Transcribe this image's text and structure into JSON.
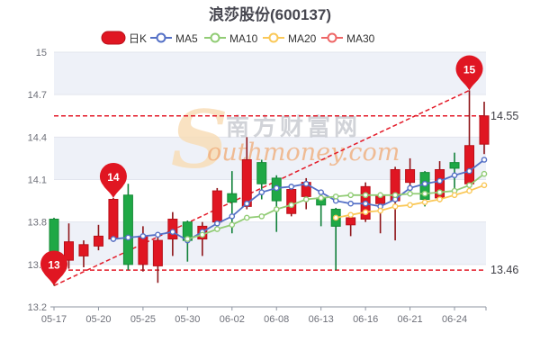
{
  "title": "浪莎股份(600137)",
  "legend": {
    "items": [
      {
        "label": "日K",
        "color": "#e01622",
        "icon": "candlestick-rect"
      },
      {
        "label": "MA5",
        "color": "#5470c6",
        "icon": "line-circle"
      },
      {
        "label": "MA10",
        "color": "#91cc75",
        "icon": "line-circle"
      },
      {
        "label": "MA20",
        "color": "#fac858",
        "icon": "line-circle"
      },
      {
        "label": "MA30",
        "color": "#ee6666",
        "icon": "line-circle"
      }
    ]
  },
  "watermark": {
    "logo_letter": "S",
    "brand_cn": "南方财富网",
    "brand_en": "outhmoney.com"
  },
  "chart_data": {
    "type": "candlestick",
    "title": "浪莎股份(600137)",
    "ylim": [
      13.2,
      15.0
    ],
    "y_ticks": [
      "15",
      "14.7",
      "14.4",
      "14.1",
      "13.8",
      "13.5",
      "13.2"
    ],
    "x_tick_labels": [
      "05-17",
      "05-20",
      "05-25",
      "05-30",
      "06-02",
      "06-08",
      "06-13",
      "06-16",
      "06-21",
      "06-24"
    ],
    "x_tick_step": 3,
    "candles_ohlc_note": "each item is [open, close, low, high]; close>=open renders red (up), else green (down)",
    "candles_ohlc": [
      [
        13.82,
        13.46,
        13.35,
        13.83
      ],
      [
        13.53,
        13.66,
        13.47,
        13.79
      ],
      [
        13.56,
        13.64,
        13.48,
        13.67
      ],
      [
        13.63,
        13.7,
        13.6,
        13.78
      ],
      [
        13.68,
        13.96,
        13.66,
        13.97
      ],
      [
        13.99,
        13.5,
        13.46,
        14.07
      ],
      [
        13.5,
        13.7,
        13.45,
        13.77
      ],
      [
        13.49,
        13.67,
        13.37,
        13.7
      ],
      [
        13.68,
        13.82,
        13.56,
        13.87
      ],
      [
        13.8,
        13.67,
        13.52,
        13.81
      ],
      [
        13.68,
        13.77,
        13.56,
        13.8
      ],
      [
        13.8,
        14.02,
        13.75,
        14.04
      ],
      [
        14.0,
        13.94,
        13.72,
        14.16
      ],
      [
        13.91,
        14.24,
        13.89,
        14.4
      ],
      [
        14.22,
        14.07,
        13.96,
        14.24
      ],
      [
        14.11,
        13.95,
        13.73,
        14.13
      ],
      [
        13.86,
        14.03,
        13.84,
        14.06
      ],
      [
        13.98,
        14.08,
        13.89,
        14.11
      ],
      [
        13.97,
        13.92,
        13.77,
        14.02
      ],
      [
        13.89,
        13.77,
        13.46,
        13.9
      ],
      [
        13.78,
        13.83,
        13.7,
        13.86
      ],
      [
        13.82,
        14.05,
        13.8,
        14.08
      ],
      [
        13.93,
        13.99,
        13.72,
        14.01
      ],
      [
        13.95,
        14.17,
        13.67,
        14.19
      ],
      [
        14.08,
        14.17,
        13.98,
        14.25
      ],
      [
        14.15,
        13.96,
        13.91,
        14.16
      ],
      [
        13.97,
        14.17,
        13.94,
        14.23
      ],
      [
        14.22,
        14.18,
        14.03,
        14.29
      ],
      [
        14.07,
        14.34,
        14.02,
        14.73
      ],
      [
        14.35,
        14.55,
        14.28,
        14.65
      ]
    ],
    "series": [
      {
        "name": "MA5",
        "start_index": 4,
        "color": "#5470c6",
        "values": [
          13.68,
          13.69,
          13.7,
          13.71,
          13.73,
          13.67,
          13.73,
          13.79,
          13.84,
          13.93,
          14.01,
          14.04,
          14.05,
          14.07,
          14.01,
          13.95,
          13.93,
          13.93,
          13.91,
          13.96,
          14.04,
          14.07,
          14.09,
          14.13,
          14.16,
          14.24
        ]
      },
      {
        "name": "MA10",
        "start_index": 9,
        "color": "#91cc75",
        "values": [
          13.68,
          13.71,
          13.75,
          13.78,
          13.83,
          13.84,
          13.89,
          13.92,
          13.96,
          13.97,
          13.98,
          13.99,
          13.99,
          13.99,
          13.99,
          14.0,
          14.0,
          14.01,
          14.02,
          14.06,
          14.14
        ]
      },
      {
        "name": "MA20",
        "start_index": 19,
        "color": "#fac858",
        "values": [
          13.83,
          13.85,
          13.87,
          13.88,
          13.91,
          13.92,
          13.94,
          13.96,
          13.99,
          14.02,
          14.06
        ]
      }
    ],
    "ref_lines": [
      {
        "value": 14.55,
        "label": "14.55"
      },
      {
        "value": 13.46,
        "label": "13.46"
      }
    ],
    "trend_line": {
      "from_index": 0,
      "from_value": 13.35,
      "to_index": 28,
      "to_value": 14.73
    },
    "mark_points": [
      {
        "index": 0,
        "value": 13.35,
        "label": "13"
      },
      {
        "index": 4,
        "value": 13.97,
        "label": "14"
      },
      {
        "index": 28,
        "value": 14.73,
        "label": "15"
      }
    ],
    "colors": {
      "up": "#e01622",
      "up_border": "#b80f18",
      "up_wick": "#8e1418",
      "down": "#1fa846",
      "down_border": "#148a36",
      "down_wick": "#11813a",
      "ref_line": "#e31a28",
      "pin": "#e01622",
      "band": "#eef1f8",
      "grid": "#e2e5ee",
      "axis": "#8f96a2"
    }
  }
}
